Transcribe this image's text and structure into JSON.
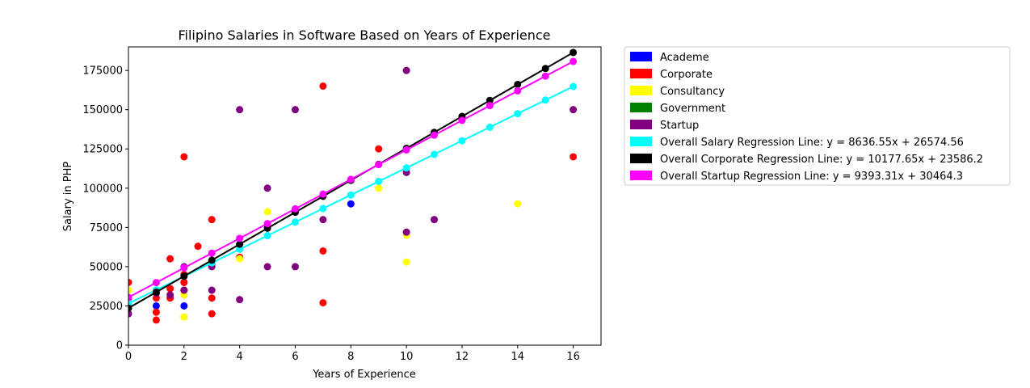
{
  "chart_data": {
    "type": "scatter",
    "title": "Filipino Salaries in Software Based on Years of Experience",
    "xlabel": "Years of Experience",
    "ylabel": "Salary in PHP",
    "xlim": [
      0,
      17
    ],
    "ylim": [
      0,
      190000
    ],
    "x_ticks": [
      0,
      2,
      4,
      6,
      8,
      10,
      12,
      14,
      16
    ],
    "y_ticks": [
      0,
      25000,
      50000,
      75000,
      100000,
      125000,
      150000,
      175000
    ],
    "grid": false,
    "legend_position": "outside-right-top",
    "series": [
      {
        "name": "Academe",
        "color": "#0000ff",
        "kind": "scatter",
        "points": [
          [
            1,
            25000
          ],
          [
            2,
            25000
          ],
          [
            2,
            40000
          ],
          [
            3,
            52000
          ],
          [
            8,
            90000
          ]
        ]
      },
      {
        "name": "Corporate",
        "color": "#ff0000",
        "kind": "scatter",
        "points": [
          [
            0,
            40000
          ],
          [
            0,
            25000
          ],
          [
            1,
            30000
          ],
          [
            1,
            21000
          ],
          [
            1,
            16000
          ],
          [
            1.5,
            55000
          ],
          [
            1.5,
            36000
          ],
          [
            1.5,
            30000
          ],
          [
            2,
            120000
          ],
          [
            2,
            45000
          ],
          [
            2,
            40000
          ],
          [
            2,
            35000
          ],
          [
            2.5,
            63000
          ],
          [
            3,
            80000
          ],
          [
            3,
            30000
          ],
          [
            3,
            20000
          ],
          [
            4,
            56000
          ],
          [
            7,
            165000
          ],
          [
            7,
            60000
          ],
          [
            7,
            27000
          ],
          [
            9,
            125000
          ],
          [
            16,
            120000
          ]
        ]
      },
      {
        "name": "Consultancy",
        "color": "#ffff00",
        "kind": "scatter",
        "points": [
          [
            0,
            35000
          ],
          [
            2,
            32000
          ],
          [
            2,
            18000
          ],
          [
            4,
            55000
          ],
          [
            5,
            85000
          ],
          [
            9,
            100000
          ],
          [
            10,
            70000
          ],
          [
            10,
            53000
          ],
          [
            14,
            90000
          ]
        ]
      },
      {
        "name": "Government",
        "color": "#008000",
        "kind": "scatter",
        "points": []
      },
      {
        "name": "Startup",
        "color": "#800080",
        "kind": "scatter",
        "points": [
          [
            0,
            30000
          ],
          [
            0,
            20000
          ],
          [
            1,
            33000
          ],
          [
            1.5,
            32000
          ],
          [
            2,
            50000
          ],
          [
            2,
            35000
          ],
          [
            3,
            50000
          ],
          [
            3,
            35000
          ],
          [
            4,
            150000
          ],
          [
            4,
            29000
          ],
          [
            5,
            100000
          ],
          [
            5,
            50000
          ],
          [
            6,
            150000
          ],
          [
            6,
            50000
          ],
          [
            7,
            80000
          ],
          [
            10,
            175000
          ],
          [
            10,
            110000
          ],
          [
            10,
            72000
          ],
          [
            11,
            80000
          ],
          [
            16,
            150000
          ]
        ]
      },
      {
        "name": "Overall Salary Regression Line: y = 8636.55x + 26574.56",
        "color": "#00ffff",
        "kind": "line",
        "slope": 8636.55,
        "intercept": 26574.56,
        "x": [
          0,
          1,
          2,
          3,
          4,
          5,
          6,
          7,
          8,
          9,
          10,
          11,
          12,
          13,
          14,
          15,
          16
        ]
      },
      {
        "name": "Overall Corporate Regression Line: y = 10177.65x + 23586.2",
        "color": "#000000",
        "kind": "line",
        "slope": 10177.65,
        "intercept": 23586.2,
        "x": [
          0,
          1,
          2,
          3,
          4,
          5,
          6,
          7,
          8,
          9,
          10,
          11,
          12,
          13,
          14,
          15,
          16
        ]
      },
      {
        "name": "Overall Startup Regression Line: y = 9393.31x + 30464.3",
        "color": "#ff00ff",
        "kind": "line",
        "slope": 9393.31,
        "intercept": 30464.3,
        "x": [
          0,
          1,
          2,
          3,
          4,
          5,
          6,
          7,
          8,
          9,
          10,
          11,
          12,
          13,
          14,
          15,
          16
        ]
      }
    ]
  }
}
